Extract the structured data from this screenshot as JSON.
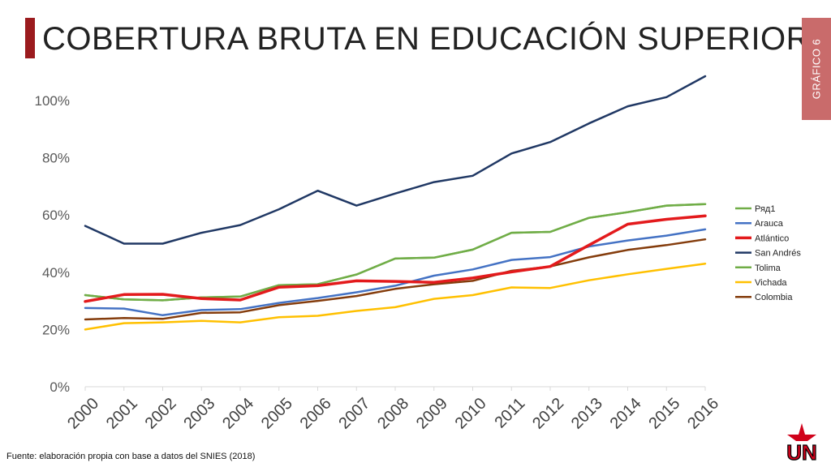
{
  "title": "COBERTURA BRUTA EN EDUCACIÓN SUPERIOR",
  "side_tab": "GRÁFICO 6",
  "source": "Fuente: elaboración propia con base a datos del SNIES (2018)",
  "logo_text": "UN",
  "colors": {
    "title_bar": "#9b1b1e",
    "side_tab": "#c96b6b",
    "logo": "#d0021b"
  },
  "chart_data": {
    "type": "line",
    "categories": [
      "2000",
      "2001",
      "2002",
      "2003",
      "2004",
      "2005",
      "2006",
      "2007",
      "2008",
      "2009",
      "2010",
      "2011",
      "2012",
      "2013",
      "2014",
      "2015",
      "2016"
    ],
    "ylim": [
      0,
      1
    ],
    "yticks": [
      0,
      0.2,
      0.4,
      0.6,
      0.8,
      1.0
    ],
    "ytick_labels": [
      "0%",
      "20%",
      "40%",
      "60%",
      "80%",
      "100%"
    ],
    "grid": false,
    "legend_position": "right",
    "series": [
      {
        "name": "Ряд1",
        "color": "#70ad47",
        "width": 2.5,
        "values": [
          0.32,
          0.305,
          0.302,
          0.312,
          0.315,
          0.355,
          0.358,
          0.392,
          0.448,
          0.451,
          0.479,
          0.538,
          0.541,
          0.59,
          0.61,
          0.633,
          0.638
        ]
      },
      {
        "name": "Arauca",
        "color": "#4472c4",
        "width": 2.5,
        "values": [
          0.275,
          0.273,
          0.25,
          0.268,
          0.271,
          0.293,
          0.31,
          0.33,
          0.353,
          0.388,
          0.41,
          0.443,
          0.453,
          0.49,
          0.511,
          0.528,
          0.55
        ]
      },
      {
        "name": "Atlántico",
        "color": "#e31a1c",
        "width": 3.5,
        "values": [
          0.298,
          0.322,
          0.323,
          0.308,
          0.303,
          0.348,
          0.353,
          0.37,
          0.368,
          0.365,
          0.38,
          0.401,
          0.42,
          0.495,
          0.568,
          0.585,
          0.597
        ]
      },
      {
        "name": "San Andrés",
        "color": "#203864",
        "width": 2.5,
        "values": [
          0.562,
          0.5,
          0.5,
          0.538,
          0.565,
          0.62,
          0.685,
          0.633,
          0.675,
          0.715,
          0.737,
          0.815,
          0.855,
          0.92,
          0.98,
          1.012,
          1.085
        ]
      },
      {
        "name": "Tolima",
        "color": "#70ad47",
        "width": 2.5,
        "values": [
          0.32,
          0.305,
          0.302,
          0.312,
          0.315,
          0.355,
          0.358,
          0.392,
          0.448,
          0.451,
          0.479,
          0.538,
          0.541,
          0.59,
          0.61,
          0.633,
          0.638
        ]
      },
      {
        "name": "Vichada",
        "color": "#ffc000",
        "width": 2.5,
        "values": [
          0.2,
          0.222,
          0.225,
          0.23,
          0.225,
          0.243,
          0.248,
          0.265,
          0.278,
          0.307,
          0.32,
          0.347,
          0.345,
          0.372,
          0.393,
          0.412,
          0.43
        ]
      },
      {
        "name": "Colombia",
        "color": "#843c0c",
        "width": 2.5,
        "values": [
          0.235,
          0.24,
          0.237,
          0.258,
          0.26,
          0.285,
          0.3,
          0.317,
          0.342,
          0.358,
          0.37,
          0.405,
          0.42,
          0.452,
          0.478,
          0.495,
          0.515
        ]
      }
    ]
  }
}
